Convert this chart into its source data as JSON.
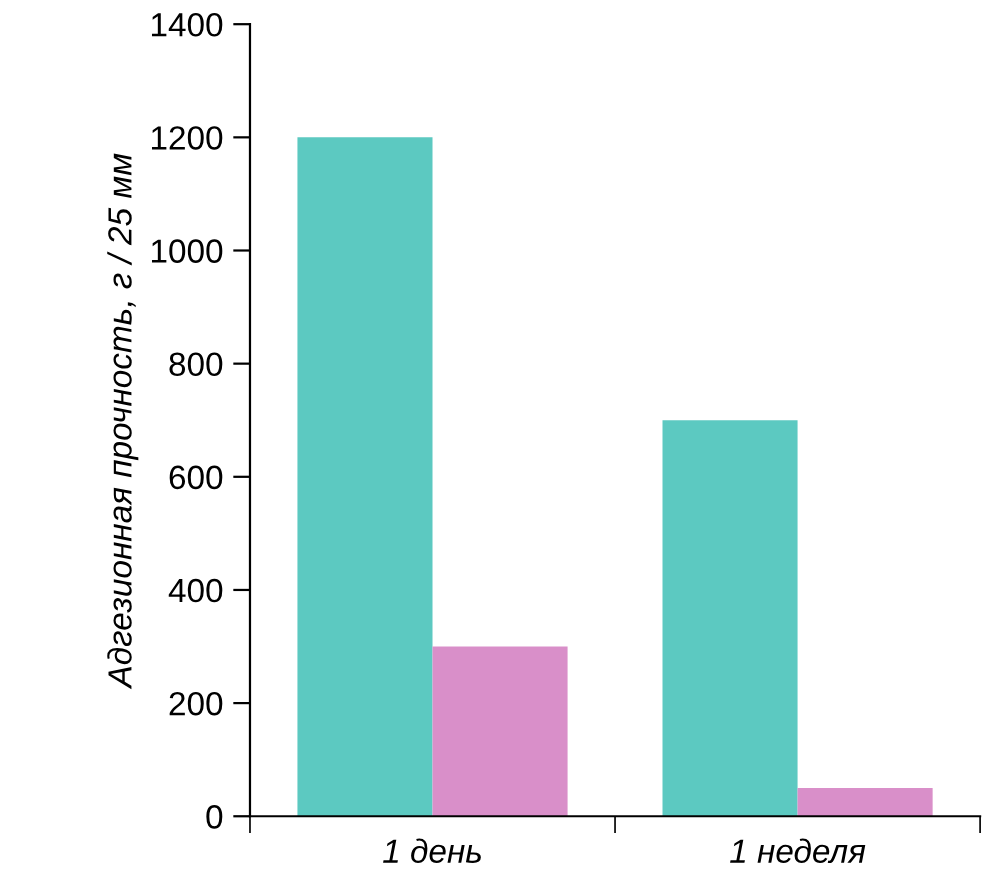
{
  "chart_data": {
    "type": "bar",
    "ylabel": "Адгезионная прочность, г / 25 мм",
    "categories": [
      "1 день",
      "1 неделя"
    ],
    "series": [
      {
        "color": "#5cc9c1",
        "values": [
          1200,
          700
        ]
      },
      {
        "color": "#d98fc9",
        "values": [
          300,
          50
        ]
      }
    ],
    "ylim": [
      0,
      1400
    ],
    "yticks": [
      0,
      200,
      400,
      600,
      800,
      1000,
      1200,
      1400
    ],
    "grid": false,
    "legend": false
  }
}
